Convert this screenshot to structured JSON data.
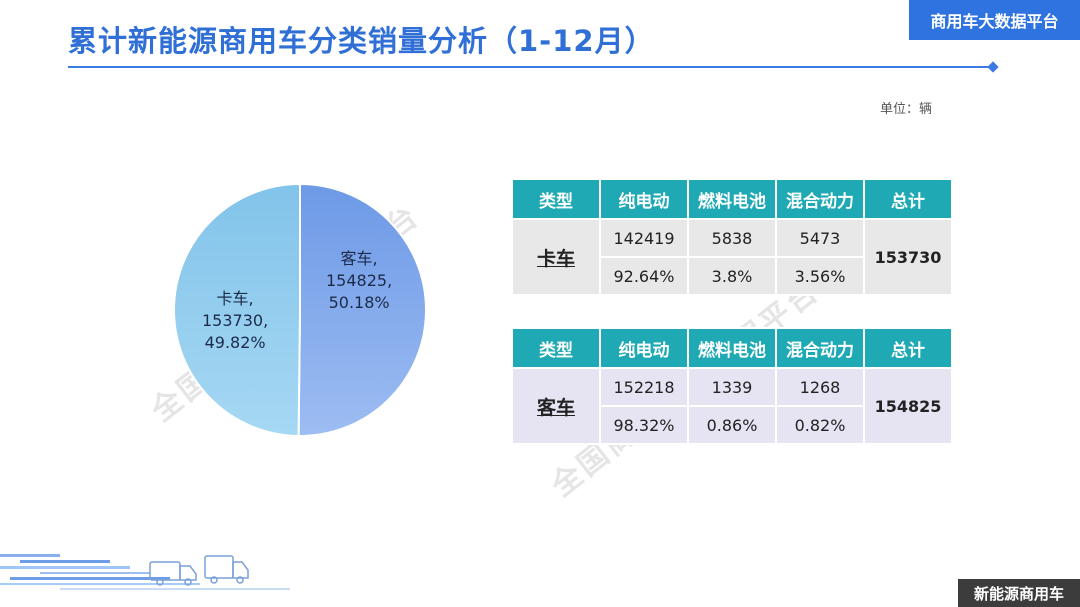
{
  "header": {
    "title": "累计新能源商用车分类销量分析（1-12月）",
    "platform_badge": "商用车大数据平台"
  },
  "unit_label": "单位：辆",
  "watermark_text": "全国商用车大数据平台",
  "colors": {
    "accent": "#2f6fd6",
    "table_header": "#1fa9b4",
    "truck_slice": "#8fcbec",
    "bus_slice": "#7aa3ea"
  },
  "chart_data": {
    "type": "pie",
    "slices": [
      {
        "name": "客车",
        "value": 154825,
        "percent": 50.18,
        "value_label": "154825,",
        "percent_label": "50.18%",
        "name_label": "客车,"
      },
      {
        "name": "卡车",
        "value": 153730,
        "percent": 49.82,
        "value_label": "153730,",
        "percent_label": "49.82%",
        "name_label": "卡车,"
      }
    ]
  },
  "tables": {
    "truck": {
      "headers": [
        "类型",
        "纯电动",
        "燃料电池",
        "混合动力",
        "总计"
      ],
      "row_label": "卡车",
      "counts": [
        "142419",
        "5838",
        "5473"
      ],
      "percents": [
        "92.64%",
        "3.8%",
        "3.56%"
      ],
      "total": "153730"
    },
    "bus": {
      "headers": [
        "类型",
        "纯电动",
        "燃料电池",
        "混合动力",
        "总计"
      ],
      "row_label": "客车",
      "counts": [
        "152218",
        "1339",
        "1268"
      ],
      "percents": [
        "98.32%",
        "0.86%",
        "0.82%"
      ],
      "total": "154825"
    }
  },
  "footer": {
    "badge": "新能源商用车"
  }
}
